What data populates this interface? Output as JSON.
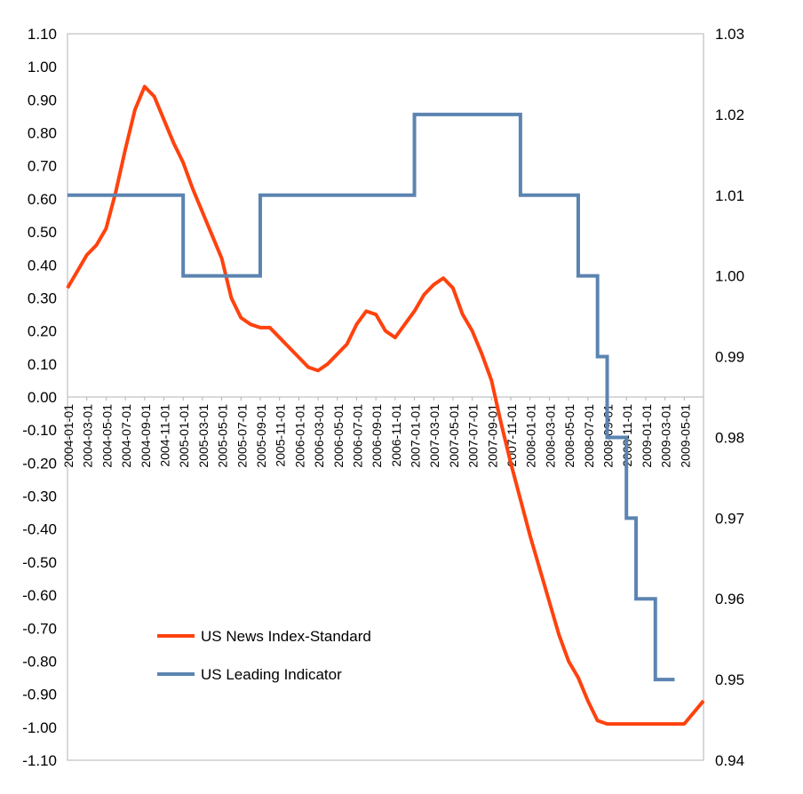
{
  "chart_data": {
    "type": "line",
    "title": "",
    "legend_position": "bottom-left-inside",
    "grid": false,
    "x_categories": [
      "2004-01-01",
      "2004-03-01",
      "2004-05-01",
      "2004-07-01",
      "2004-09-01",
      "2004-11-01",
      "2005-01-01",
      "2005-03-01",
      "2005-05-01",
      "2005-07-01",
      "2005-09-01",
      "2005-11-01",
      "2006-01-01",
      "2006-03-01",
      "2006-05-01",
      "2006-07-01",
      "2006-09-01",
      "2006-11-01",
      "2007-01-01",
      "2007-03-01",
      "2007-05-01",
      "2007-07-01",
      "2007-09-01",
      "2007-11-01",
      "2008-01-01",
      "2008-03-01",
      "2008-05-01",
      "2008-07-01",
      "2008-09-01",
      "2008-11-01",
      "2009-01-01",
      "2009-03-01",
      "2009-05-01"
    ],
    "x_range_months": [
      0,
      66
    ],
    "y_left": {
      "ylim": [
        -1.1,
        1.1
      ],
      "ticks": [
        "1.10",
        "1.00",
        "0.90",
        "0.80",
        "0.70",
        "0.60",
        "0.50",
        "0.40",
        "0.30",
        "0.20",
        "0.10",
        "0.00",
        "-0.10",
        "-0.20",
        "-0.30",
        "-0.40",
        "-0.50",
        "-0.60",
        "-0.70",
        "-0.80",
        "-0.90",
        "-1.00",
        "-1.10"
      ]
    },
    "y_right": {
      "ylim": [
        0.94,
        1.03
      ],
      "ticks": [
        "1.03",
        "1.02",
        "1.01",
        "1.00",
        "0.99",
        "0.98",
        "0.97",
        "0.96",
        "0.95",
        "0.94"
      ]
    },
    "series": [
      {
        "name": "US News Index-Standard",
        "axis": "left",
        "color": "#ff420e",
        "points": [
          [
            0,
            0.33
          ],
          [
            1,
            0.38
          ],
          [
            2,
            0.43
          ],
          [
            3,
            0.46
          ],
          [
            4,
            0.51
          ],
          [
            5,
            0.62
          ],
          [
            6,
            0.75
          ],
          [
            7,
            0.87
          ],
          [
            8,
            0.94
          ],
          [
            9,
            0.91
          ],
          [
            10,
            0.84
          ],
          [
            11,
            0.77
          ],
          [
            12,
            0.71
          ],
          [
            13,
            0.63
          ],
          [
            14,
            0.56
          ],
          [
            15,
            0.49
          ],
          [
            16,
            0.42
          ],
          [
            17,
            0.3
          ],
          [
            18,
            0.24
          ],
          [
            19,
            0.22
          ],
          [
            20,
            0.21
          ],
          [
            21,
            0.21
          ],
          [
            22,
            0.18
          ],
          [
            23,
            0.15
          ],
          [
            24,
            0.12
          ],
          [
            25,
            0.09
          ],
          [
            26,
            0.08
          ],
          [
            27,
            0.1
          ],
          [
            28,
            0.13
          ],
          [
            29,
            0.16
          ],
          [
            30,
            0.22
          ],
          [
            31,
            0.26
          ],
          [
            32,
            0.25
          ],
          [
            33,
            0.2
          ],
          [
            34,
            0.18
          ],
          [
            35,
            0.22
          ],
          [
            36,
            0.26
          ],
          [
            37,
            0.31
          ],
          [
            38,
            0.34
          ],
          [
            39,
            0.36
          ],
          [
            40,
            0.33
          ],
          [
            41,
            0.25
          ],
          [
            42,
            0.2
          ],
          [
            43,
            0.13
          ],
          [
            44,
            0.05
          ],
          [
            45,
            -0.08
          ],
          [
            46,
            -0.2
          ],
          [
            47,
            -0.31
          ],
          [
            48,
            -0.42
          ],
          [
            49,
            -0.52
          ],
          [
            50,
            -0.62
          ],
          [
            51,
            -0.72
          ],
          [
            52,
            -0.8
          ],
          [
            53,
            -0.85
          ],
          [
            54,
            -0.92
          ],
          [
            55,
            -0.98
          ],
          [
            56,
            -0.99
          ],
          [
            58,
            -0.99
          ],
          [
            60,
            -0.99
          ],
          [
            62,
            -0.99
          ],
          [
            64,
            -0.99
          ],
          [
            66,
            -0.92
          ]
        ]
      },
      {
        "name": "US Leading Indicator",
        "axis": "right",
        "color": "#5b84b1",
        "step": true,
        "points": [
          [
            0,
            1.01
          ],
          [
            12,
            1.01
          ],
          [
            12,
            1.0
          ],
          [
            20,
            1.0
          ],
          [
            20,
            1.01
          ],
          [
            36,
            1.01
          ],
          [
            36,
            1.02
          ],
          [
            47,
            1.02
          ],
          [
            47,
            1.01
          ],
          [
            53,
            1.01
          ],
          [
            53,
            1.0
          ],
          [
            55,
            1.0
          ],
          [
            55,
            0.99
          ],
          [
            56,
            0.99
          ],
          [
            56,
            0.98
          ],
          [
            58,
            0.98
          ],
          [
            58,
            0.97
          ],
          [
            59,
            0.97
          ],
          [
            59,
            0.96
          ],
          [
            61,
            0.96
          ],
          [
            61,
            0.95
          ],
          [
            63,
            0.95
          ]
        ]
      }
    ]
  }
}
